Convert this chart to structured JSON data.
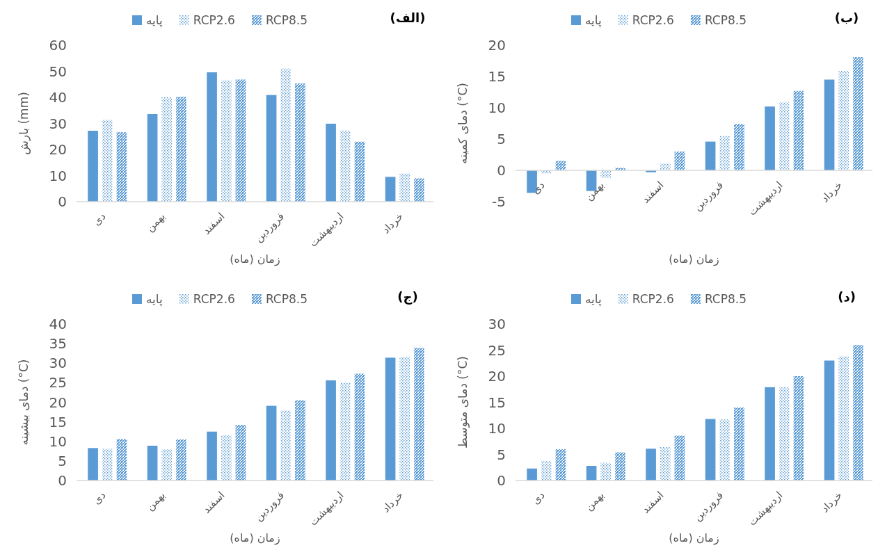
{
  "chart_data": [
    {
      "type": "bar",
      "title": "(الف)",
      "xlabel": "زمان (ماه)",
      "ylabel": "بارش (mm)",
      "categories": [
        "دی",
        "بهمن",
        "اسفند",
        "فروردین",
        "اردیبهشت",
        "خرداد"
      ],
      "series": [
        {
          "name": "پایه",
          "color": "#5b9bd5",
          "values": [
            27.2,
            33.6,
            49.6,
            40.9,
            29.9,
            9.5
          ]
        },
        {
          "name": "RCP2.6",
          "color": "#5b9bd5",
          "values": [
            31.3,
            40,
            46.5,
            51,
            27.3,
            10.8
          ]
        },
        {
          "name": "RCP8.5",
          "color": "#5b9bd5",
          "values": [
            26.6,
            40.2,
            46.8,
            45.3,
            23,
            8.9
          ]
        }
      ],
      "ylim": [
        0,
        60
      ],
      "yticks": [
        0,
        10,
        20,
        30,
        40,
        50,
        60
      ],
      "legend": "top",
      "grid": false
    },
    {
      "type": "bar",
      "title": "(ب)",
      "xlabel": "زمان (ماه)",
      "ylabel": "دمای کمینه (°C)",
      "categories": [
        "دی",
        "بهمن",
        "اسفند",
        "فروردین",
        "اردیبهشت",
        "خرداد"
      ],
      "series": [
        {
          "name": "پایه",
          "color": "#5b9bd5",
          "values": [
            -3.6,
            -3.3,
            -0.3,
            4.6,
            10.2,
            14.5
          ]
        },
        {
          "name": "RCP2.6",
          "color": "#5b9bd5",
          "values": [
            -0.5,
            -1.2,
            1.1,
            5.5,
            10.9,
            15.9
          ]
        },
        {
          "name": "RCP8.5",
          "color": "#5b9bd5",
          "values": [
            1.5,
            0.4,
            3.0,
            7.4,
            12.7,
            18.1
          ]
        }
      ],
      "ylim": [
        -5,
        20
      ],
      "yticks": [
        -5,
        0,
        5,
        10,
        15,
        20
      ],
      "legend": "top",
      "grid": false
    },
    {
      "type": "bar",
      "title": "(ج)",
      "xlabel": "زمان (ماه)",
      "ylabel": "دمای بیشینه (°C)",
      "categories": [
        "دی",
        "بهمن",
        "اسفند",
        "فروردین",
        "اردیبهشت",
        "خرداد"
      ],
      "series": [
        {
          "name": "پایه",
          "color": "#5b9bd5",
          "values": [
            8.3,
            8.9,
            12.5,
            19.1,
            25.6,
            31.4
          ]
        },
        {
          "name": "RCP2.6",
          "color": "#5b9bd5",
          "values": [
            8.1,
            8.0,
            11.6,
            17.9,
            25.0,
            31.6
          ]
        },
        {
          "name": "RCP8.5",
          "color": "#5b9bd5",
          "values": [
            10.6,
            10.5,
            14.2,
            20.5,
            27.3,
            33.9
          ]
        }
      ],
      "ylim": [
        0,
        40
      ],
      "yticks": [
        0,
        5,
        10,
        15,
        20,
        25,
        30,
        35,
        40
      ],
      "legend": "top",
      "grid": false
    },
    {
      "type": "bar",
      "title": "(د)",
      "xlabel": "زمان (ماه)",
      "ylabel": "دمای متوسط (°C)",
      "categories": [
        "دی",
        "بهمن",
        "اسفند",
        "فروردین",
        "اردیبهشت",
        "خرداد"
      ],
      "series": [
        {
          "name": "پایه",
          "color": "#5b9bd5",
          "values": [
            2.3,
            2.8,
            6.1,
            11.8,
            17.9,
            23.0
          ]
        },
        {
          "name": "RCP2.6",
          "color": "#5b9bd5",
          "values": [
            3.7,
            3.4,
            6.4,
            11.7,
            17.9,
            23.8
          ]
        },
        {
          "name": "RCP8.5",
          "color": "#5b9bd5",
          "values": [
            6.0,
            5.4,
            8.6,
            14.0,
            20.0,
            26.0
          ]
        }
      ],
      "ylim": [
        0,
        30
      ],
      "yticks": [
        0,
        5,
        10,
        15,
        20,
        25,
        30
      ],
      "legend": "top",
      "grid": false
    }
  ]
}
